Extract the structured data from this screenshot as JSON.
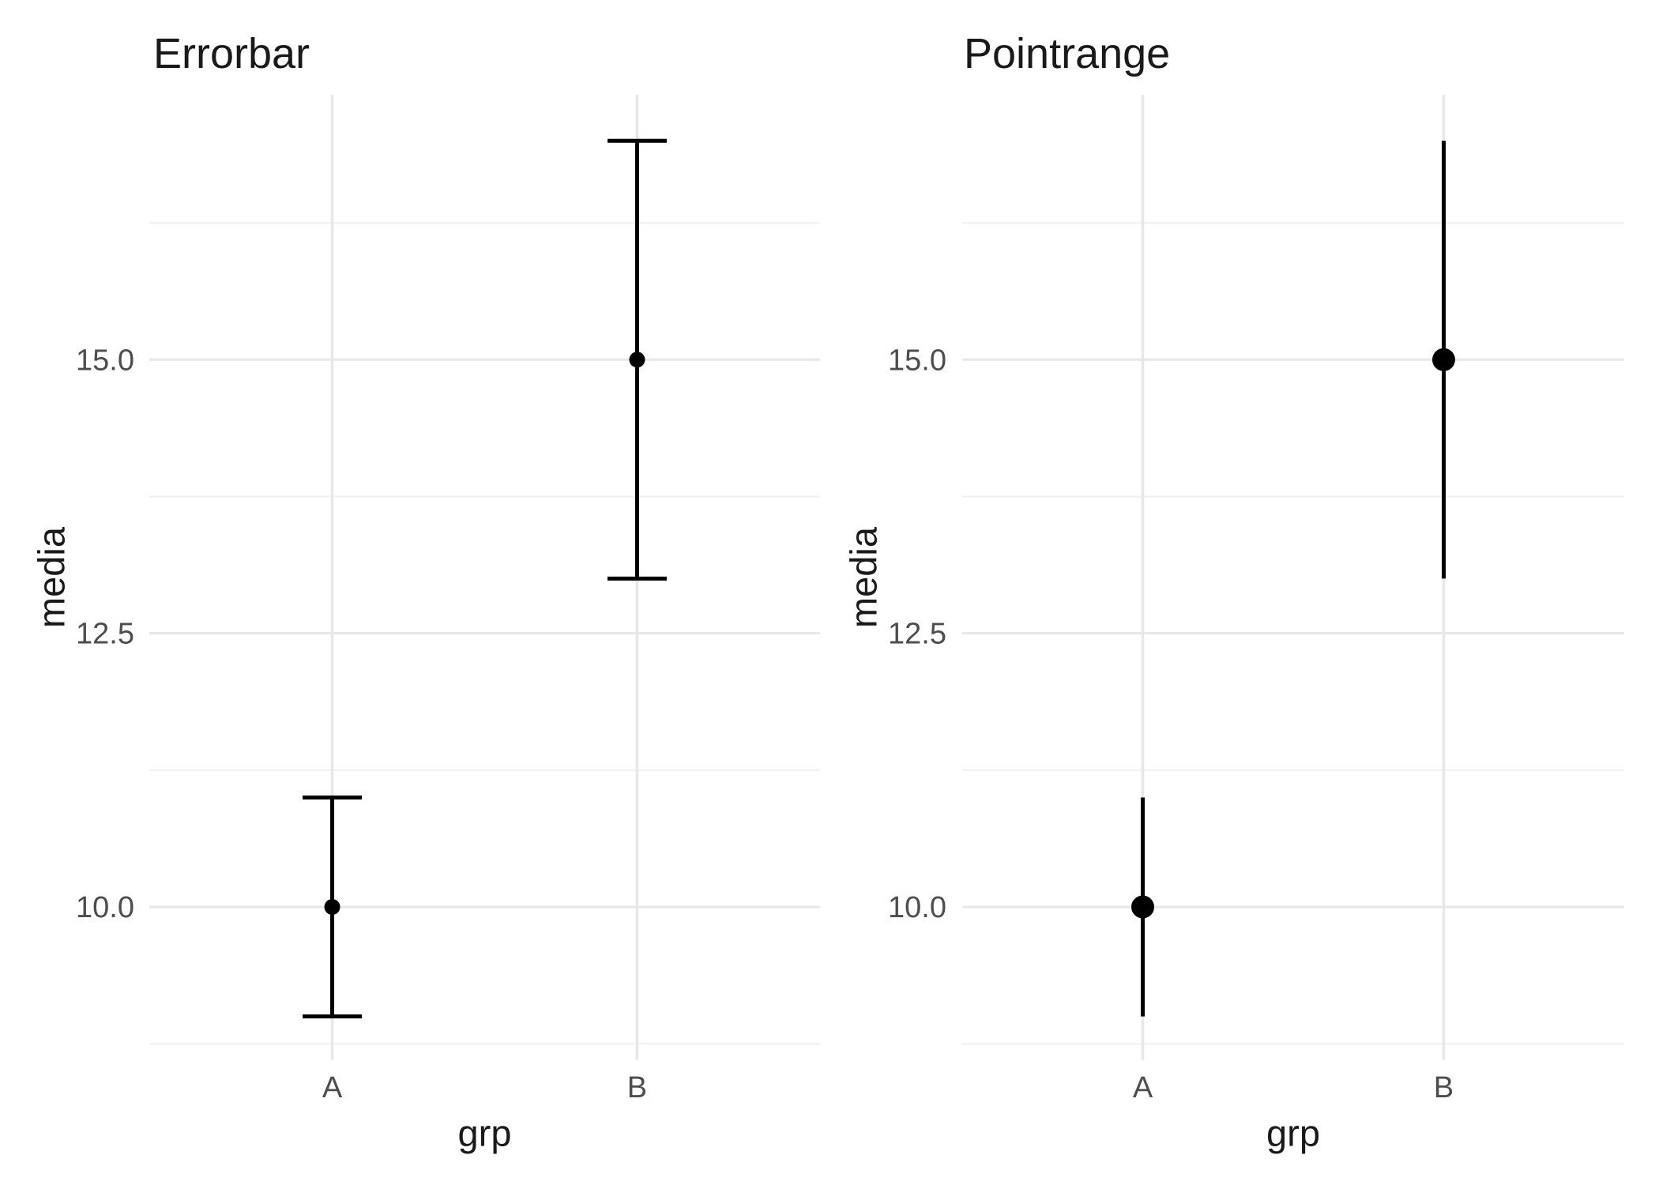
{
  "figure": {
    "background": "#ffffff",
    "n_panels": 2
  },
  "colors": {
    "data_black": "#000000",
    "tick_label": "#4d4d4d",
    "axis_title": "#1a1a1a",
    "plot_title": "#1a1a1a",
    "grid_major": "#e7e7e7",
    "grid_minor": "#f0f0f0",
    "background": "#ffffff"
  },
  "chart_data": [
    {
      "type": "errorbar",
      "title": "Errorbar",
      "xlabel": "grp",
      "ylabel": "media",
      "categories": [
        "A",
        "B"
      ],
      "points": [
        {
          "grp": "A",
          "media": 10.0,
          "ymin": 9.0,
          "ymax": 11.0
        },
        {
          "grp": "B",
          "media": 15.0,
          "ymin": 13.0,
          "ymax": 17.0
        }
      ],
      "yticks": [
        10.0,
        12.5,
        15.0
      ],
      "ytick_labels": [
        "10.0",
        "12.5",
        "15.0"
      ],
      "yticks_minor": [
        8.75,
        11.25,
        13.75,
        16.25
      ],
      "ylim": [
        8.6,
        17.42
      ],
      "grid": "major+minor, no axis lines, no ticks (theme_minimal)",
      "legend": "none"
    },
    {
      "type": "pointrange",
      "title": "Pointrange",
      "xlabel": "grp",
      "ylabel": "media",
      "categories": [
        "A",
        "B"
      ],
      "points": [
        {
          "grp": "A",
          "media": 10.0,
          "ymin": 9.0,
          "ymax": 11.0
        },
        {
          "grp": "B",
          "media": 15.0,
          "ymin": 13.0,
          "ymax": 17.0
        }
      ],
      "yticks": [
        10.0,
        12.5,
        15.0
      ],
      "ytick_labels": [
        "10.0",
        "12.5",
        "15.0"
      ],
      "yticks_minor": [
        8.75,
        11.25,
        13.75,
        16.25
      ],
      "ylim": [
        8.6,
        17.42
      ],
      "grid": "major+minor, no axis lines, no ticks (theme_minimal)",
      "legend": "none"
    }
  ]
}
